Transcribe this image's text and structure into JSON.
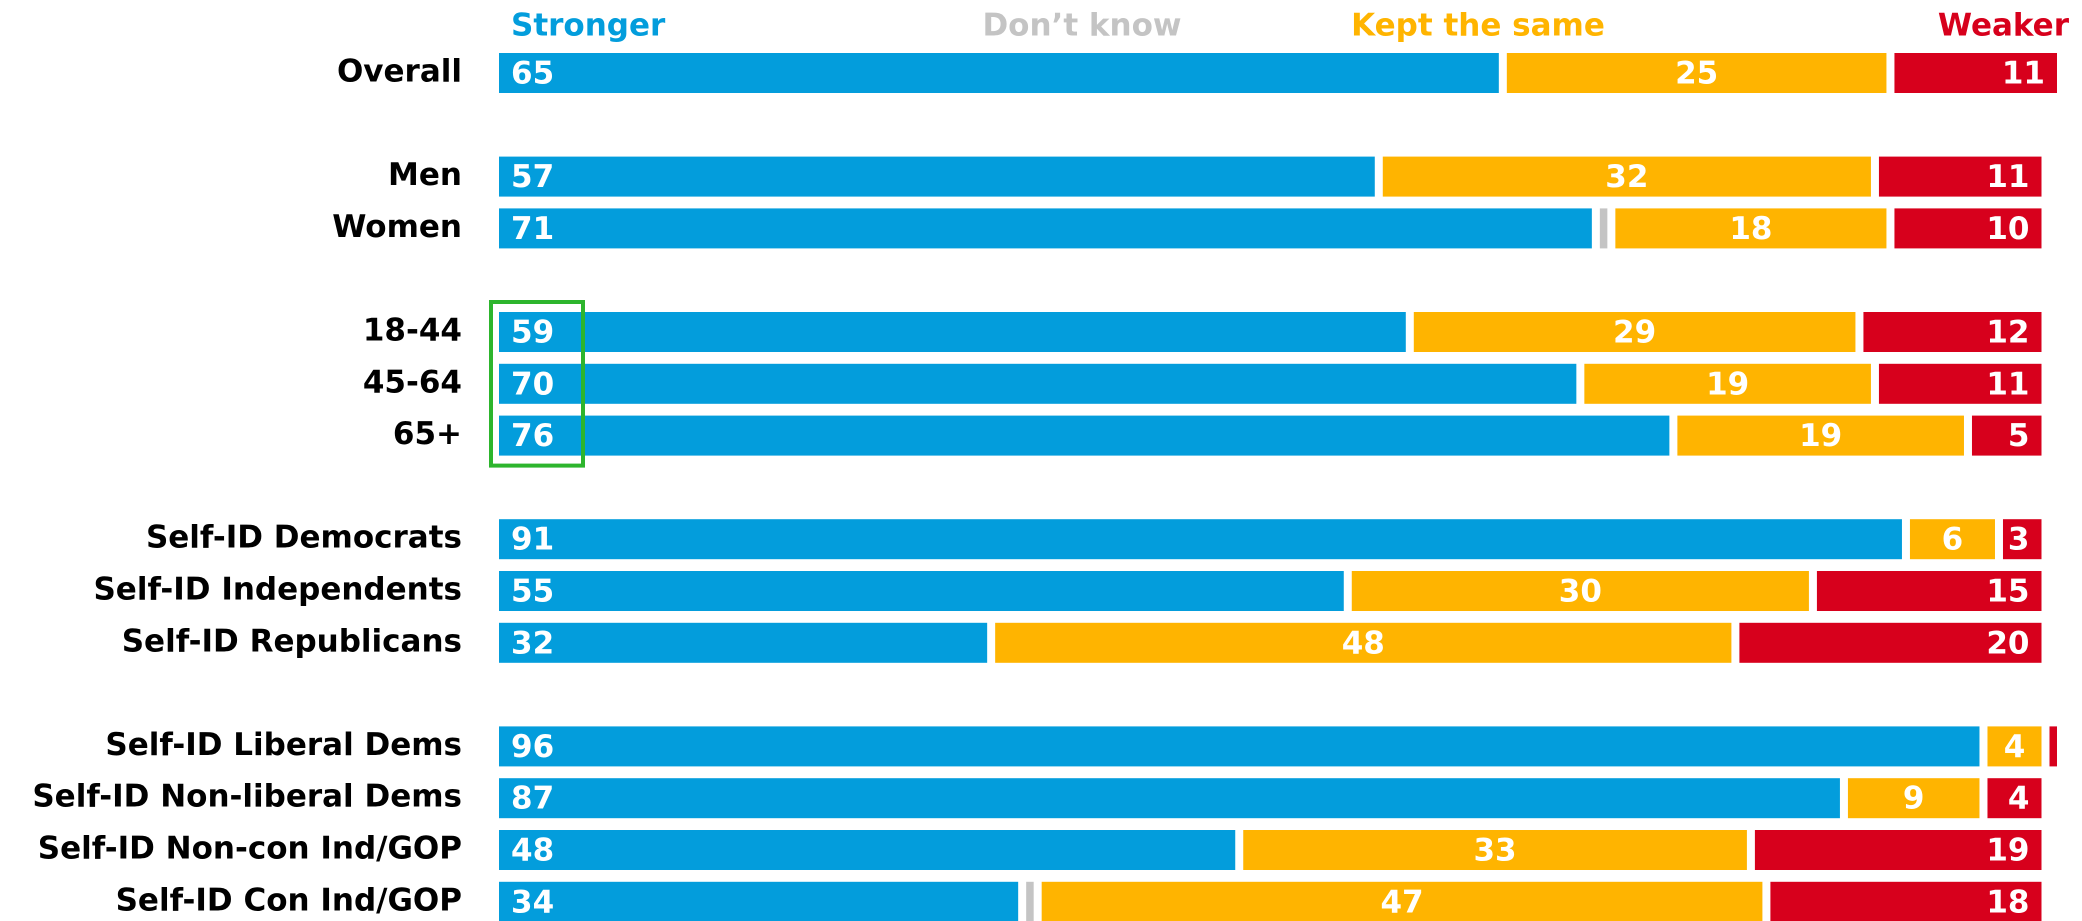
{
  "chart_data": {
    "type": "stacked_bar_horizontal",
    "categories": [
      "Overall",
      "Men",
      "Women",
      "18-44",
      "45-64",
      "65+",
      "Self-ID Democrats",
      "Self-ID Independents",
      "Self-ID Republicans",
      "Self-ID Liberal Dems",
      "Self-ID Non-liberal Dems",
      "Self-ID Non-con Ind/GOP",
      "Self-ID Con Ind/GOP"
    ],
    "series": [
      {
        "name": "Stronger",
        "color": "#039ddc",
        "values": [
          65,
          57,
          71,
          59,
          70,
          76,
          91,
          55,
          32,
          96,
          87,
          48,
          34
        ]
      },
      {
        "name": "Don’t know",
        "color": "#c4c4c4",
        "values": [
          0,
          0,
          1,
          0,
          0,
          0,
          0,
          0,
          0,
          0,
          0,
          0,
          1
        ],
        "value_labels": [
          null,
          null,
          null,
          null,
          null,
          null,
          null,
          null,
          null,
          null,
          null,
          null,
          null
        ]
      },
      {
        "name": "Kept the same",
        "color": "#ffb400",
        "values": [
          25,
          32,
          18,
          29,
          19,
          19,
          6,
          30,
          48,
          4,
          9,
          33,
          47
        ]
      },
      {
        "name": "Weaker",
        "color": "#d7001c",
        "values": [
          11,
          11,
          10,
          12,
          11,
          5,
          3,
          15,
          20,
          1,
          4,
          19,
          18
        ],
        "value_labels": [
          "11",
          "11",
          "10",
          "12",
          "11",
          "5",
          "3",
          "15",
          "20",
          null,
          "4",
          "19",
          "18"
        ]
      }
    ]
  }
}
